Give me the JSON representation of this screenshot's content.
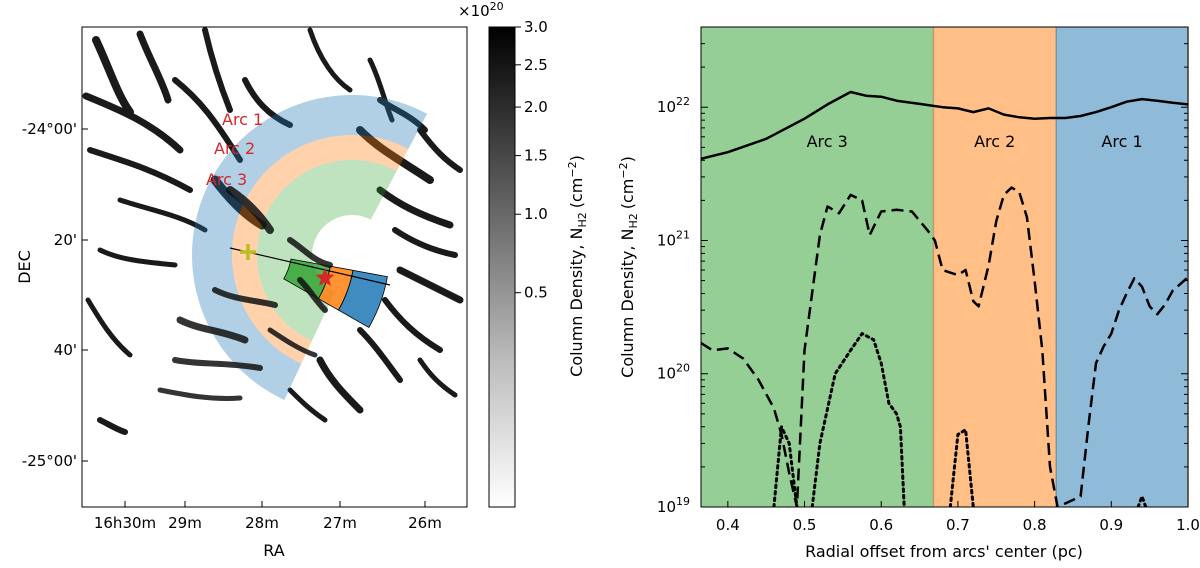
{
  "left_map": {
    "xlabel": "RA",
    "ylabel": "DEC",
    "xticks": [
      "16h30m",
      "29m",
      "28m",
      "27m",
      "26m"
    ],
    "yticks": [
      "-24°00'",
      "20'",
      "40'",
      "-25°00'"
    ],
    "arc_labels": [
      "Arc 1",
      "Arc 2",
      "Arc 3"
    ],
    "arc_label_color": "#d62728",
    "arc_colors": {
      "arc1": "#1f77b4",
      "arc2": "#ff7f0e",
      "arc3": "#2ca02c"
    },
    "center_marker": "plus",
    "center_marker_color": "#bcbd22",
    "star_color": "#d62728"
  },
  "colorbar": {
    "label": "Column Density, N",
    "label_subscript": "H2",
    "label_units": "(cm",
    "label_units_exp": "−2",
    "label_units_close": ")",
    "scale_factor": "×10",
    "scale_exp": "20",
    "ticks": [
      "3.0",
      "2.5",
      "2.0",
      "1.5",
      "1.0",
      "0.5"
    ],
    "tick_values": [
      3.0,
      2.5,
      2.0,
      1.5,
      1.0,
      0.5
    ],
    "vmax": 3.0
  },
  "chart_data": {
    "type": "line",
    "xlabel": "Radial offset from arcs' center (pc)",
    "ylabel": "Column Density, N",
    "ylabel_subscript": "H2",
    "ylabel_units": "(cm",
    "ylabel_units_exp": "−2",
    "ylabel_units_close": ")",
    "yscale": "log",
    "xlim": [
      0.365,
      1.0
    ],
    "ylim": [
      1e+19,
      4e+22
    ],
    "xticks": [
      "0.4",
      "0.5",
      "0.6",
      "0.7",
      "0.8",
      "0.9",
      "1.0"
    ],
    "ytick_base": "10",
    "ytick_exps": [
      "19",
      "20",
      "21",
      "22"
    ],
    "regions": [
      {
        "label": "Arc 3",
        "x0": 0.365,
        "x1": 0.668,
        "color": "#2ca02c"
      },
      {
        "label": "Arc 2",
        "x0": 0.668,
        "x1": 0.828,
        "color": "#ff7f0e"
      },
      {
        "label": "Arc 1",
        "x0": 0.828,
        "x1": 1.0,
        "color": "#1f77b4"
      }
    ],
    "series": [
      {
        "name": "solid",
        "style": "solid",
        "points": [
          [
            0.365,
            4.1e+21
          ],
          [
            0.4,
            4.6e+21
          ],
          [
            0.45,
            5.8e+21
          ],
          [
            0.5,
            8.2e+21
          ],
          [
            0.53,
            1.05e+22
          ],
          [
            0.56,
            1.3e+22
          ],
          [
            0.58,
            1.22e+22
          ],
          [
            0.6,
            1.2e+22
          ],
          [
            0.62,
            1.12e+22
          ],
          [
            0.65,
            1.06e+22
          ],
          [
            0.68,
            1e+22
          ],
          [
            0.7,
            9.8e+21
          ],
          [
            0.72,
            9.2e+21
          ],
          [
            0.74,
            9.8e+21
          ],
          [
            0.76,
            8.8e+21
          ],
          [
            0.78,
            8.4e+21
          ],
          [
            0.8,
            8.2e+21
          ],
          [
            0.82,
            8.3e+21
          ],
          [
            0.84,
            8.3e+21
          ],
          [
            0.86,
            8.6e+21
          ],
          [
            0.88,
            9.2e+21
          ],
          [
            0.9,
            1e+22
          ],
          [
            0.92,
            1.1e+22
          ],
          [
            0.94,
            1.15e+22
          ],
          [
            0.96,
            1.12e+22
          ],
          [
            0.98,
            1.08e+22
          ],
          [
            1.0,
            1.05e+22
          ]
        ]
      },
      {
        "name": "dashed",
        "style": "dashed",
        "points": [
          [
            0.365,
            1.7e+20
          ],
          [
            0.38,
            1.5e+20
          ],
          [
            0.4,
            1.55e+20
          ],
          [
            0.42,
            1.3e+20
          ],
          [
            0.44,
            9e+19
          ],
          [
            0.46,
            5.5e+19
          ],
          [
            0.47,
            3.5e+19
          ],
          [
            0.48,
            1.8e+19
          ],
          [
            0.49,
            1e+19
          ],
          [
            0.5,
            1.5e+20
          ],
          [
            0.52,
            1.1e+21
          ],
          [
            0.53,
            1.8e+21
          ],
          [
            0.545,
            1.6e+21
          ],
          [
            0.56,
            2.2e+21
          ],
          [
            0.575,
            2e+21
          ],
          [
            0.585,
            1.1e+21
          ],
          [
            0.6,
            1.65e+21
          ],
          [
            0.62,
            1.7e+21
          ],
          [
            0.64,
            1.65e+21
          ],
          [
            0.66,
            1.2e+21
          ],
          [
            0.67,
            1e+21
          ],
          [
            0.68,
            6e+20
          ],
          [
            0.7,
            5.5e+20
          ],
          [
            0.71,
            6e+20
          ],
          [
            0.72,
            3.5e+20
          ],
          [
            0.727,
            3.2e+20
          ],
          [
            0.74,
            6.5e+20
          ],
          [
            0.75,
            1.4e+21
          ],
          [
            0.76,
            2.2e+21
          ],
          [
            0.77,
            2.5e+21
          ],
          [
            0.78,
            2.3e+21
          ],
          [
            0.79,
            1.5e+21
          ],
          [
            0.8,
            5e+20
          ],
          [
            0.81,
            1.5e+20
          ],
          [
            0.82,
            2e+19
          ],
          [
            0.83,
            1e+19
          ],
          [
            0.86,
            1.2e+19
          ],
          [
            0.87,
            4e+19
          ],
          [
            0.88,
            1.2e+20
          ],
          [
            0.89,
            1.6e+20
          ],
          [
            0.9,
            2e+20
          ],
          [
            0.91,
            3e+20
          ],
          [
            0.92,
            4e+20
          ],
          [
            0.93,
            5.2e+20
          ],
          [
            0.94,
            4.5e+20
          ],
          [
            0.95,
            3.2e+20
          ],
          [
            0.96,
            2.8e+20
          ],
          [
            0.97,
            3.3e+20
          ],
          [
            0.98,
            4.2e+20
          ],
          [
            1.0,
            5.3e+20
          ]
        ]
      },
      {
        "name": "dotted",
        "style": "dotted",
        "segments": [
          [
            [
              0.46,
              1e+19
            ],
            [
              0.47,
              4e+19
            ],
            [
              0.48,
              3e+19
            ],
            [
              0.49,
              1e+19
            ]
          ],
          [
            [
              0.51,
              1e+19
            ],
            [
              0.52,
              3e+19
            ],
            [
              0.54,
              1e+20
            ],
            [
              0.56,
              1.5e+20
            ],
            [
              0.575,
              2e+20
            ],
            [
              0.59,
              1.8e+20
            ],
            [
              0.6,
              1.2e+20
            ],
            [
              0.61,
              6e+19
            ],
            [
              0.62,
              5e+19
            ],
            [
              0.625,
              4e+19
            ],
            [
              0.63,
              1e+19
            ]
          ],
          [
            [
              0.69,
              1e+19
            ],
            [
              0.7,
              3.5e+19
            ],
            [
              0.71,
              3.8e+19
            ],
            [
              0.72,
              1e+19
            ]
          ],
          [
            [
              0.935,
              1e+19
            ],
            [
              0.94,
              1.2e+19
            ],
            [
              0.945,
              1e+19
            ]
          ]
        ]
      }
    ]
  }
}
